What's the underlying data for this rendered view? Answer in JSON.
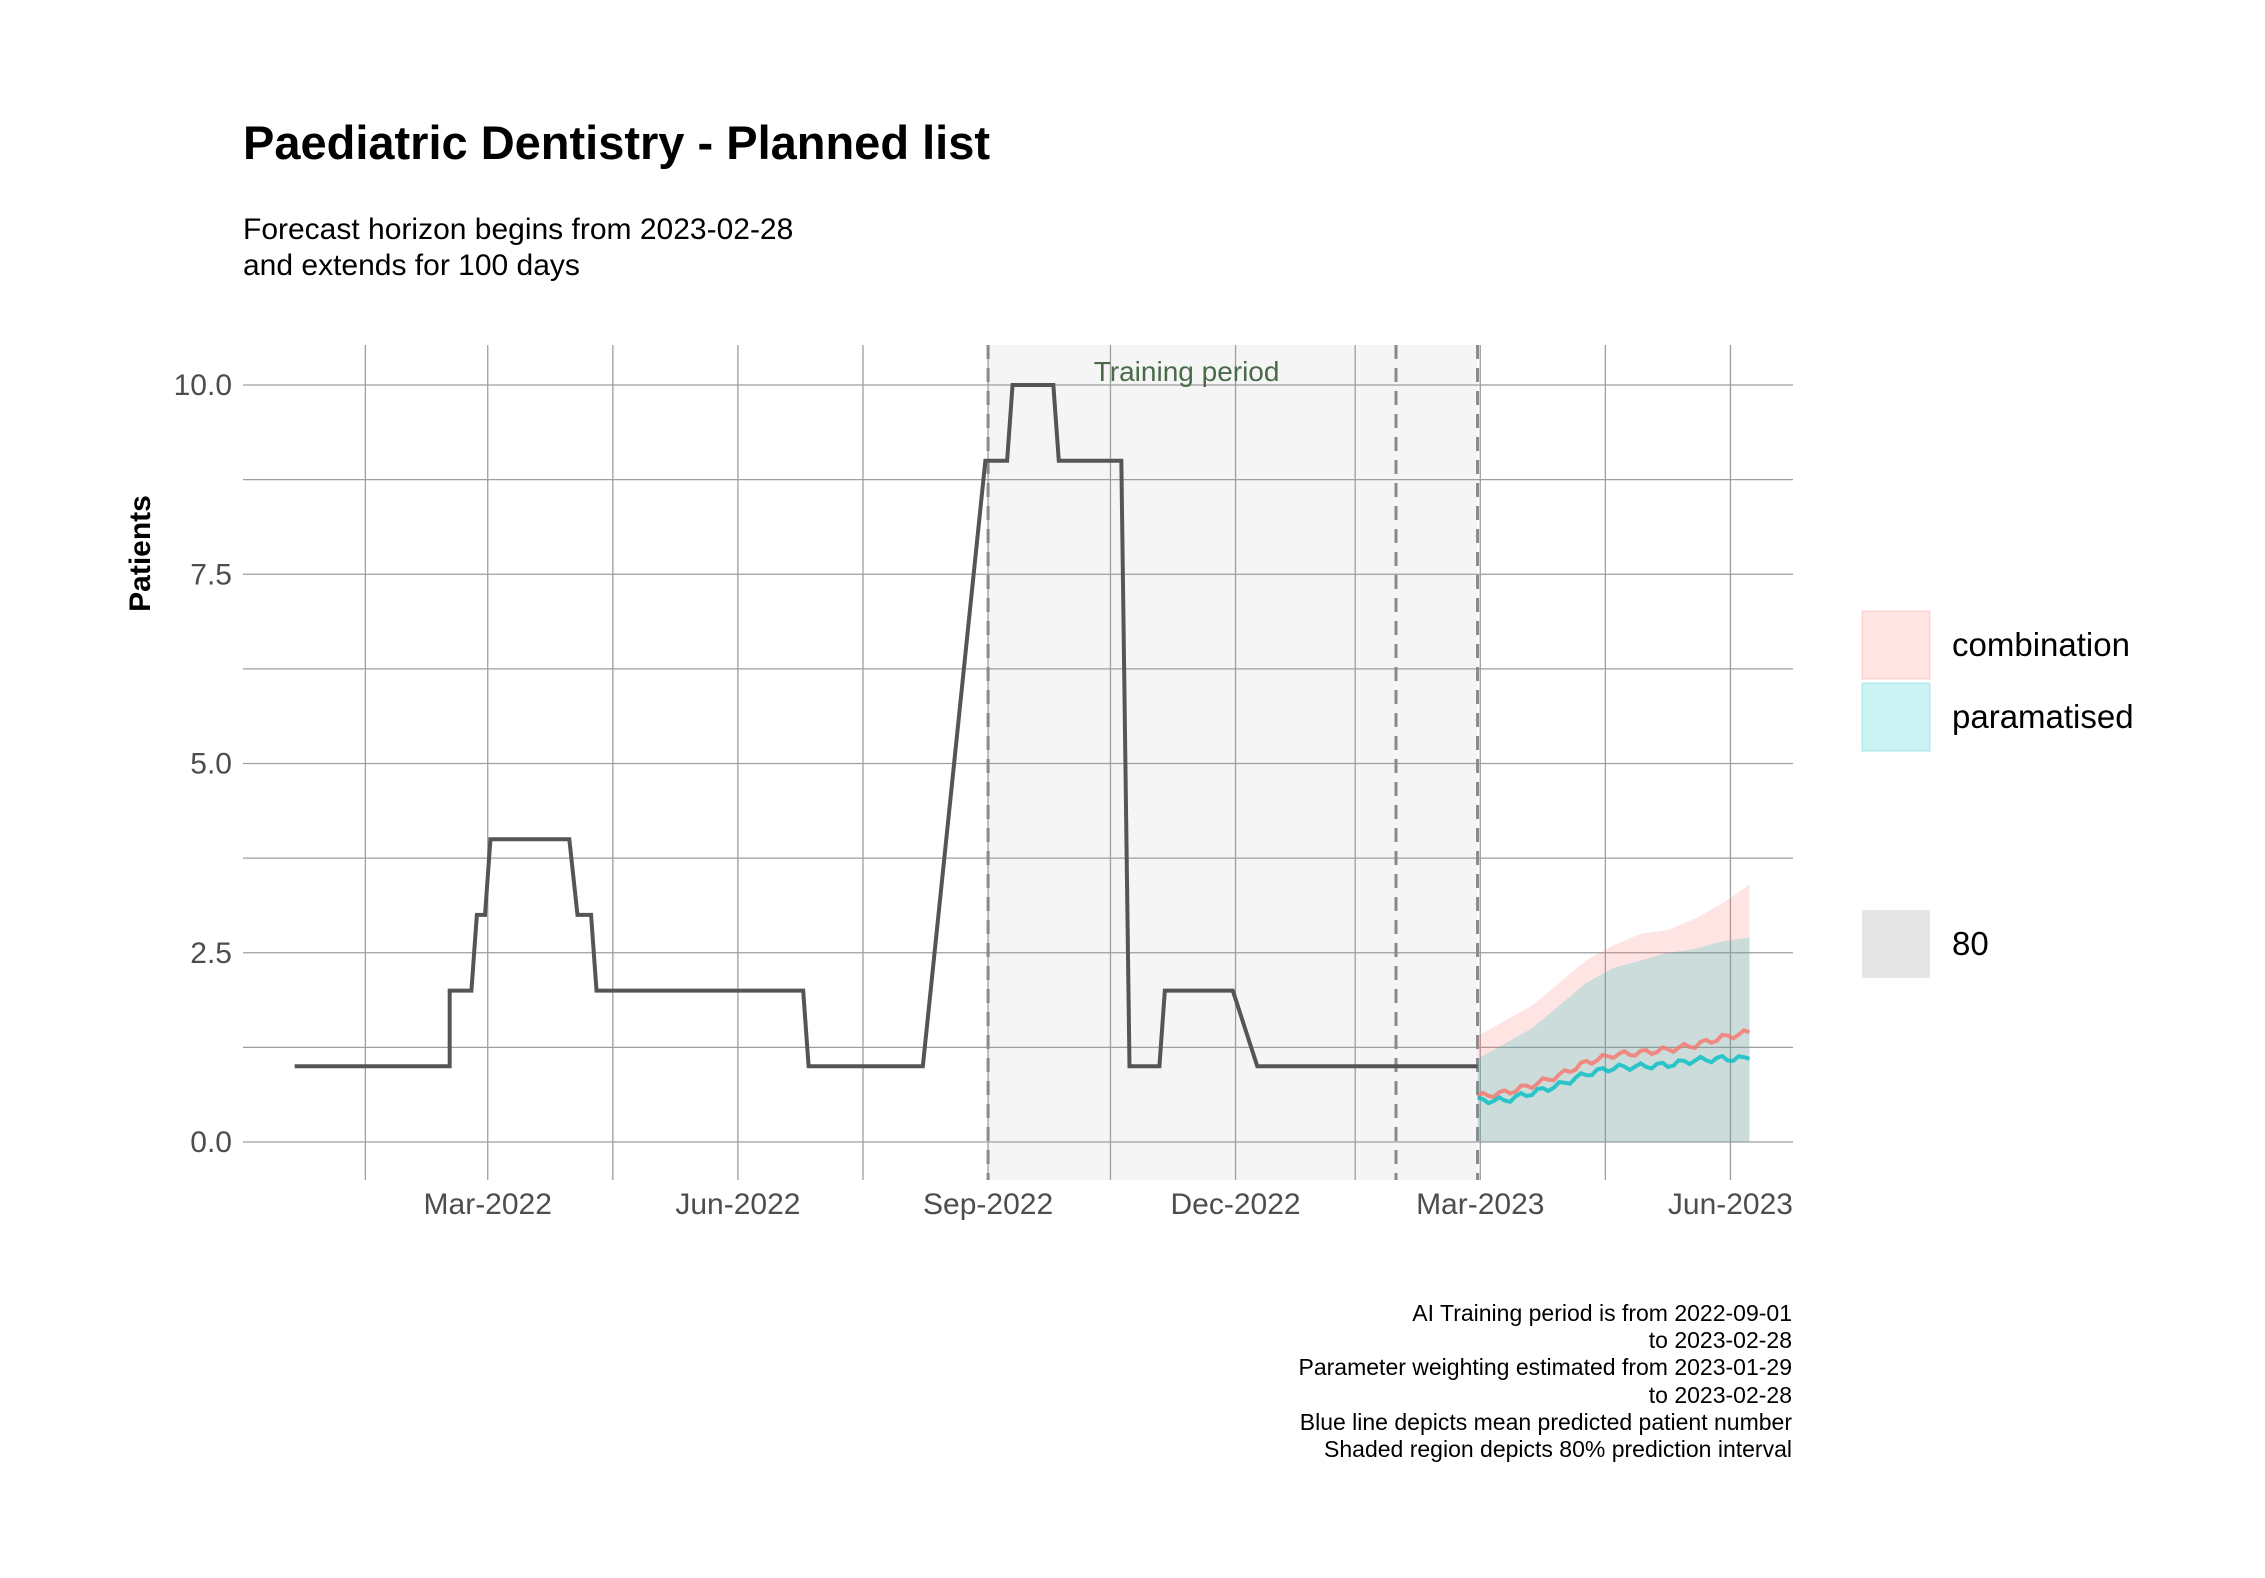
{
  "title": "Paediatric Dentistry - Planned list",
  "subtitle": [
    "Forecast horizon begins from 2023-02-28",
    "and extends for 100 days"
  ],
  "caption": [
    "AI Training period is from 2022-09-01",
    "to 2023-02-28",
    "Parameter weighting estimated from 2023-01-29",
    "to 2023-02-28",
    "Blue line depicts mean predicted patient number",
    "Shaded region depicts 80% prediction interval"
  ],
  "colors": {
    "history_line": "#555555",
    "combination": "#f8766d",
    "paramatised": "#00bfc4",
    "training_shade": "#f5f5f5",
    "grid": "#9e9e9e"
  },
  "chart_data": {
    "type": "line",
    "title": "Paediatric Dentistry - Planned list",
    "xlabel": "",
    "ylabel": "Patients",
    "ylim": [
      0,
      10
    ],
    "y_ticks": [
      0.0,
      2.5,
      5.0,
      7.5,
      10.0
    ],
    "y_tick_labels": [
      "0.0",
      "2.5",
      "5.0",
      "7.5",
      "10.0"
    ],
    "x_ticks": [
      "2022-03-01",
      "2022-06-01",
      "2022-09-01",
      "2022-12-01",
      "2023-03-01",
      "2023-06-01"
    ],
    "x_tick_labels": [
      "Mar-2022",
      "Jun-2022",
      "Sep-2022",
      "Dec-2022",
      "Mar-2023",
      "Jun-2023"
    ],
    "grid": true,
    "annotations": [
      {
        "text": "Training period",
        "x": "2022-11-13",
        "y": 10.0
      }
    ],
    "shaded_regions": [
      {
        "label": "Training period",
        "x_start": "2022-09-01",
        "x_end": "2023-02-28"
      }
    ],
    "vlines": [
      "2022-09-01",
      "2023-01-29",
      "2023-02-28"
    ],
    "history": {
      "x": [
        "2021-12-20",
        "2022-02-15",
        "2022-02-15",
        "2022-02-23",
        "2022-02-25",
        "2022-02-28",
        "2022-03-02",
        "2022-03-31",
        "2022-04-03",
        "2022-04-08",
        "2022-04-10",
        "2022-06-25",
        "2022-06-27",
        "2022-08-08",
        "2022-08-31",
        "2022-09-08",
        "2022-09-10",
        "2022-09-25",
        "2022-09-27",
        "2022-10-20",
        "2022-10-23",
        "2022-11-03",
        "2022-11-05",
        "2022-11-30",
        "2022-12-09",
        "2022-12-15",
        "2023-02-28"
      ],
      "y": [
        1,
        1,
        2,
        2,
        3,
        3,
        4,
        4,
        3,
        3,
        2,
        2,
        1,
        1,
        9,
        9,
        10,
        10,
        9,
        9,
        1,
        1,
        2,
        2,
        1,
        1,
        1
      ]
    },
    "forecast_x": [
      "2023-02-28",
      "2023-03-10",
      "2023-03-20",
      "2023-03-30",
      "2023-04-09",
      "2023-04-19",
      "2023-04-29",
      "2023-05-09",
      "2023-05-19",
      "2023-05-29",
      "2023-06-08"
    ],
    "series": [
      {
        "name": "combination",
        "mean": [
          0.6,
          0.65,
          0.75,
          0.88,
          1.05,
          1.15,
          1.18,
          1.22,
          1.28,
          1.38,
          1.45
        ],
        "lower": [
          0.0,
          0.0,
          0.0,
          0.0,
          0.0,
          0.0,
          0.0,
          0.0,
          0.0,
          0.0,
          0.0
        ],
        "upper": [
          1.4,
          1.6,
          1.8,
          2.1,
          2.4,
          2.6,
          2.75,
          2.8,
          2.95,
          3.15,
          3.4
        ]
      },
      {
        "name": "paramatised",
        "mean": [
          0.55,
          0.55,
          0.65,
          0.75,
          0.9,
          0.98,
          1.0,
          1.02,
          1.08,
          1.1,
          1.1
        ],
        "lower": [
          0.0,
          0.0,
          0.0,
          0.0,
          0.0,
          0.0,
          0.0,
          0.0,
          0.0,
          0.0,
          0.0
        ],
        "upper": [
          1.1,
          1.3,
          1.5,
          1.8,
          2.1,
          2.3,
          2.4,
          2.5,
          2.55,
          2.65,
          2.7
        ]
      }
    ],
    "legend": {
      "placement": "right",
      "entries": [
        "combination",
        "paramatised"
      ],
      "level_entries": [
        "80"
      ]
    }
  }
}
